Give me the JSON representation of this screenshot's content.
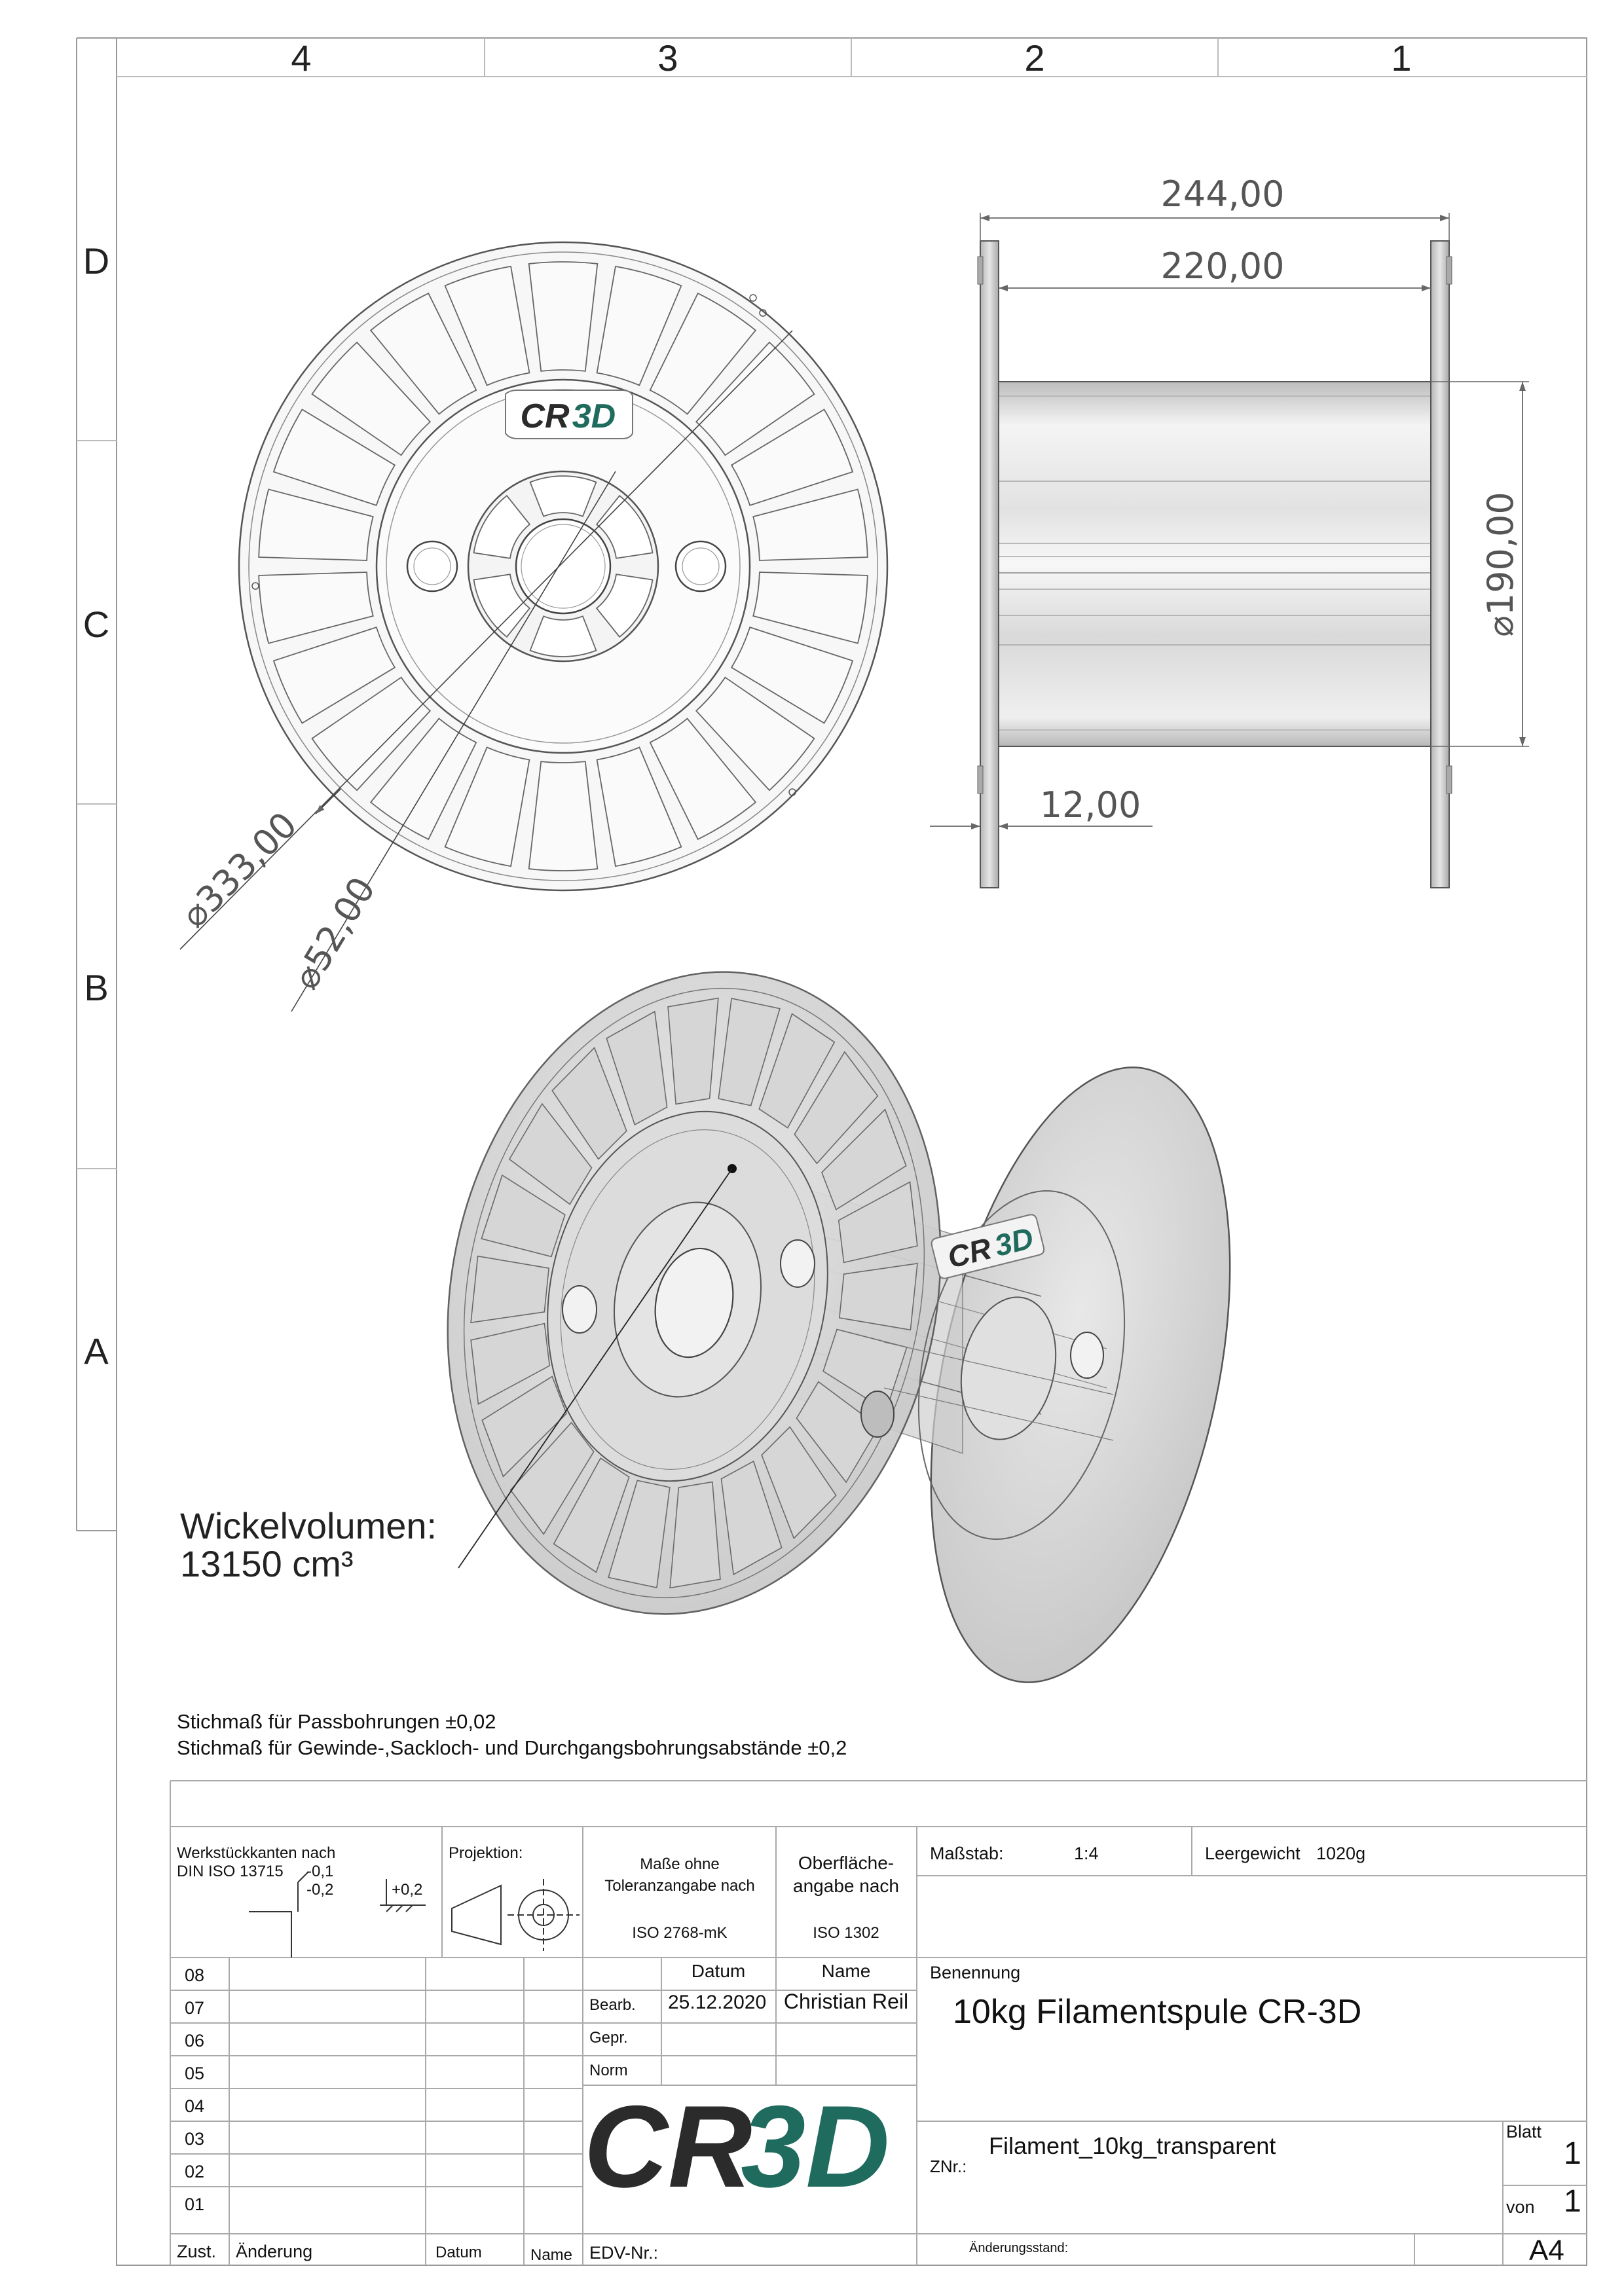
{
  "frame": {
    "columns": [
      "4",
      "3",
      "2",
      "1"
    ],
    "rows": [
      "D",
      "C",
      "B",
      "A"
    ]
  },
  "front_view": {
    "logo": {
      "part1": "CR",
      "part2": "3D"
    },
    "dim_outer": "333,00",
    "dim_hub": "52,00",
    "diameter_symbol": "⌀"
  },
  "side_view": {
    "dim_overall": "244,00",
    "dim_inner": "220,00",
    "dim_core": "190,00",
    "dim_flange": "12,00"
  },
  "iso_view": {
    "logo": {
      "part1": "CR",
      "part2": "3D"
    },
    "volume_label": "Wickelvolumen:",
    "volume_value": "13150 cm³"
  },
  "notes": [
    "Stichmaß für Passbohrungen ±0,02",
    "Stichmaß für Gewinde-,Sackloch- und Durchgangsbohrungsabstände ±0,2"
  ],
  "title_block": {
    "edges_title_1": "Werkstückkanten nach",
    "edges_title_2": "DIN ISO 13715",
    "edge_tol_1": "-0,1",
    "edge_tol_2": "-0,2",
    "edge_tol_3": "+0,2",
    "projection_label": "Projektion:",
    "tolerance_1": "Maße ohne",
    "tolerance_2": "Toleranzangabe nach",
    "tolerance_3": "ISO 2768-mK",
    "surface_1": "Oberfläche-",
    "surface_2": "angabe nach",
    "surface_3": "ISO 1302",
    "scale_label": "Maßstab:",
    "scale_value": "1:4",
    "weight_label": "Leergewicht",
    "weight_value": "1020g",
    "revision_rows": [
      "08",
      "07",
      "06",
      "05",
      "04",
      "03",
      "02",
      "01"
    ],
    "col_zust": "Zust.",
    "col_aenderung": "Änderung",
    "col_datum": "Datum",
    "col_name": "Name",
    "hdr_datum": "Datum",
    "hdr_name": "Name",
    "bearb_label": "Bearb.",
    "bearb_date": "25.12.2020",
    "bearb_name": "Christian Reil",
    "gepr_label": "Gepr.",
    "norm_label": "Norm",
    "benennung_label": "Benennung",
    "title": "10kg Filamentspule CR-3D",
    "company_logo": {
      "part1": "CR",
      "part2": "3D"
    },
    "edv_label": "EDV-Nr.:",
    "znr_label": "ZNr.:",
    "drawing_number": "Filament_10kg_transparent",
    "blatt_label": "Blatt",
    "blatt_value": "1",
    "von_label": "von",
    "von_value": "1",
    "aenderungsstand_label": "Änderungsstand:",
    "format": "A4"
  },
  "colors": {
    "logo_dark": "#2b2b2b",
    "logo_teal": "#1f6b5e",
    "line": "#222222",
    "part_fill": "#d2d2d2"
  }
}
